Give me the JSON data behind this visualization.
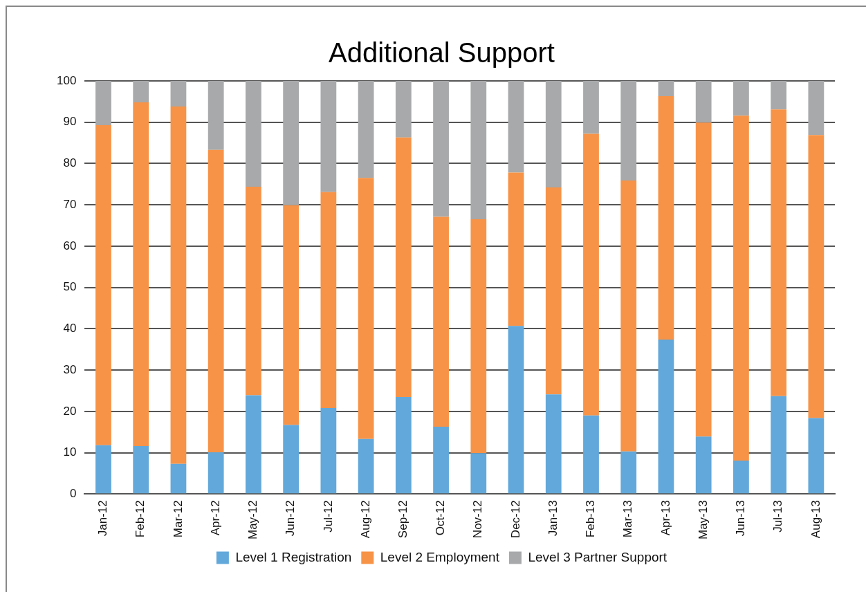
{
  "chart_data": {
    "type": "bar",
    "title": "Additional Support",
    "stacked": true,
    "categories": [
      "Jan-12",
      "Feb-12",
      "Mar-12",
      "Apr-12",
      "May-12",
      "Jun-12",
      "Jul-12",
      "Aug-12",
      "Sep-12",
      "Oct-12",
      "Nov-12",
      "Dec-12",
      "Jan-13",
      "Feb-13",
      "Mar-13",
      "Apr-13",
      "May-13",
      "Jun-13",
      "Jul-13",
      "Aug-13"
    ],
    "series": [
      {
        "name": "Level 1 Registration",
        "color": "#62a8da",
        "values": [
          11.8,
          11.6,
          7.3,
          10.1,
          23.9,
          16.7,
          20.8,
          13.3,
          23.5,
          16.3,
          9.9,
          40.7,
          24.1,
          19.0,
          10.3,
          37.4,
          13.9,
          8.1,
          23.7,
          18.4
        ]
      },
      {
        "name": "Level 2 Employment",
        "color": "#f79347",
        "values": [
          77.5,
          83.2,
          86.5,
          73.2,
          50.5,
          53.2,
          52.3,
          63.2,
          62.8,
          50.8,
          56.6,
          37.1,
          50.1,
          68.2,
          65.6,
          58.9,
          76.0,
          83.5,
          69.4,
          68.5
        ]
      },
      {
        "name": "Level 3 Partner Support",
        "color": "#a7a9aa",
        "values": [
          10.7,
          5.2,
          6.2,
          16.7,
          25.6,
          30.1,
          26.9,
          23.5,
          13.7,
          32.9,
          33.5,
          22.2,
          25.8,
          12.8,
          24.1,
          3.7,
          10.1,
          8.4,
          6.9,
          13.1
        ]
      }
    ],
    "ylim": [
      0,
      100
    ],
    "yticks": [
      0,
      10,
      20,
      30,
      40,
      50,
      60,
      70,
      80,
      90,
      100
    ],
    "grid": "y",
    "legend": "bottom"
  }
}
